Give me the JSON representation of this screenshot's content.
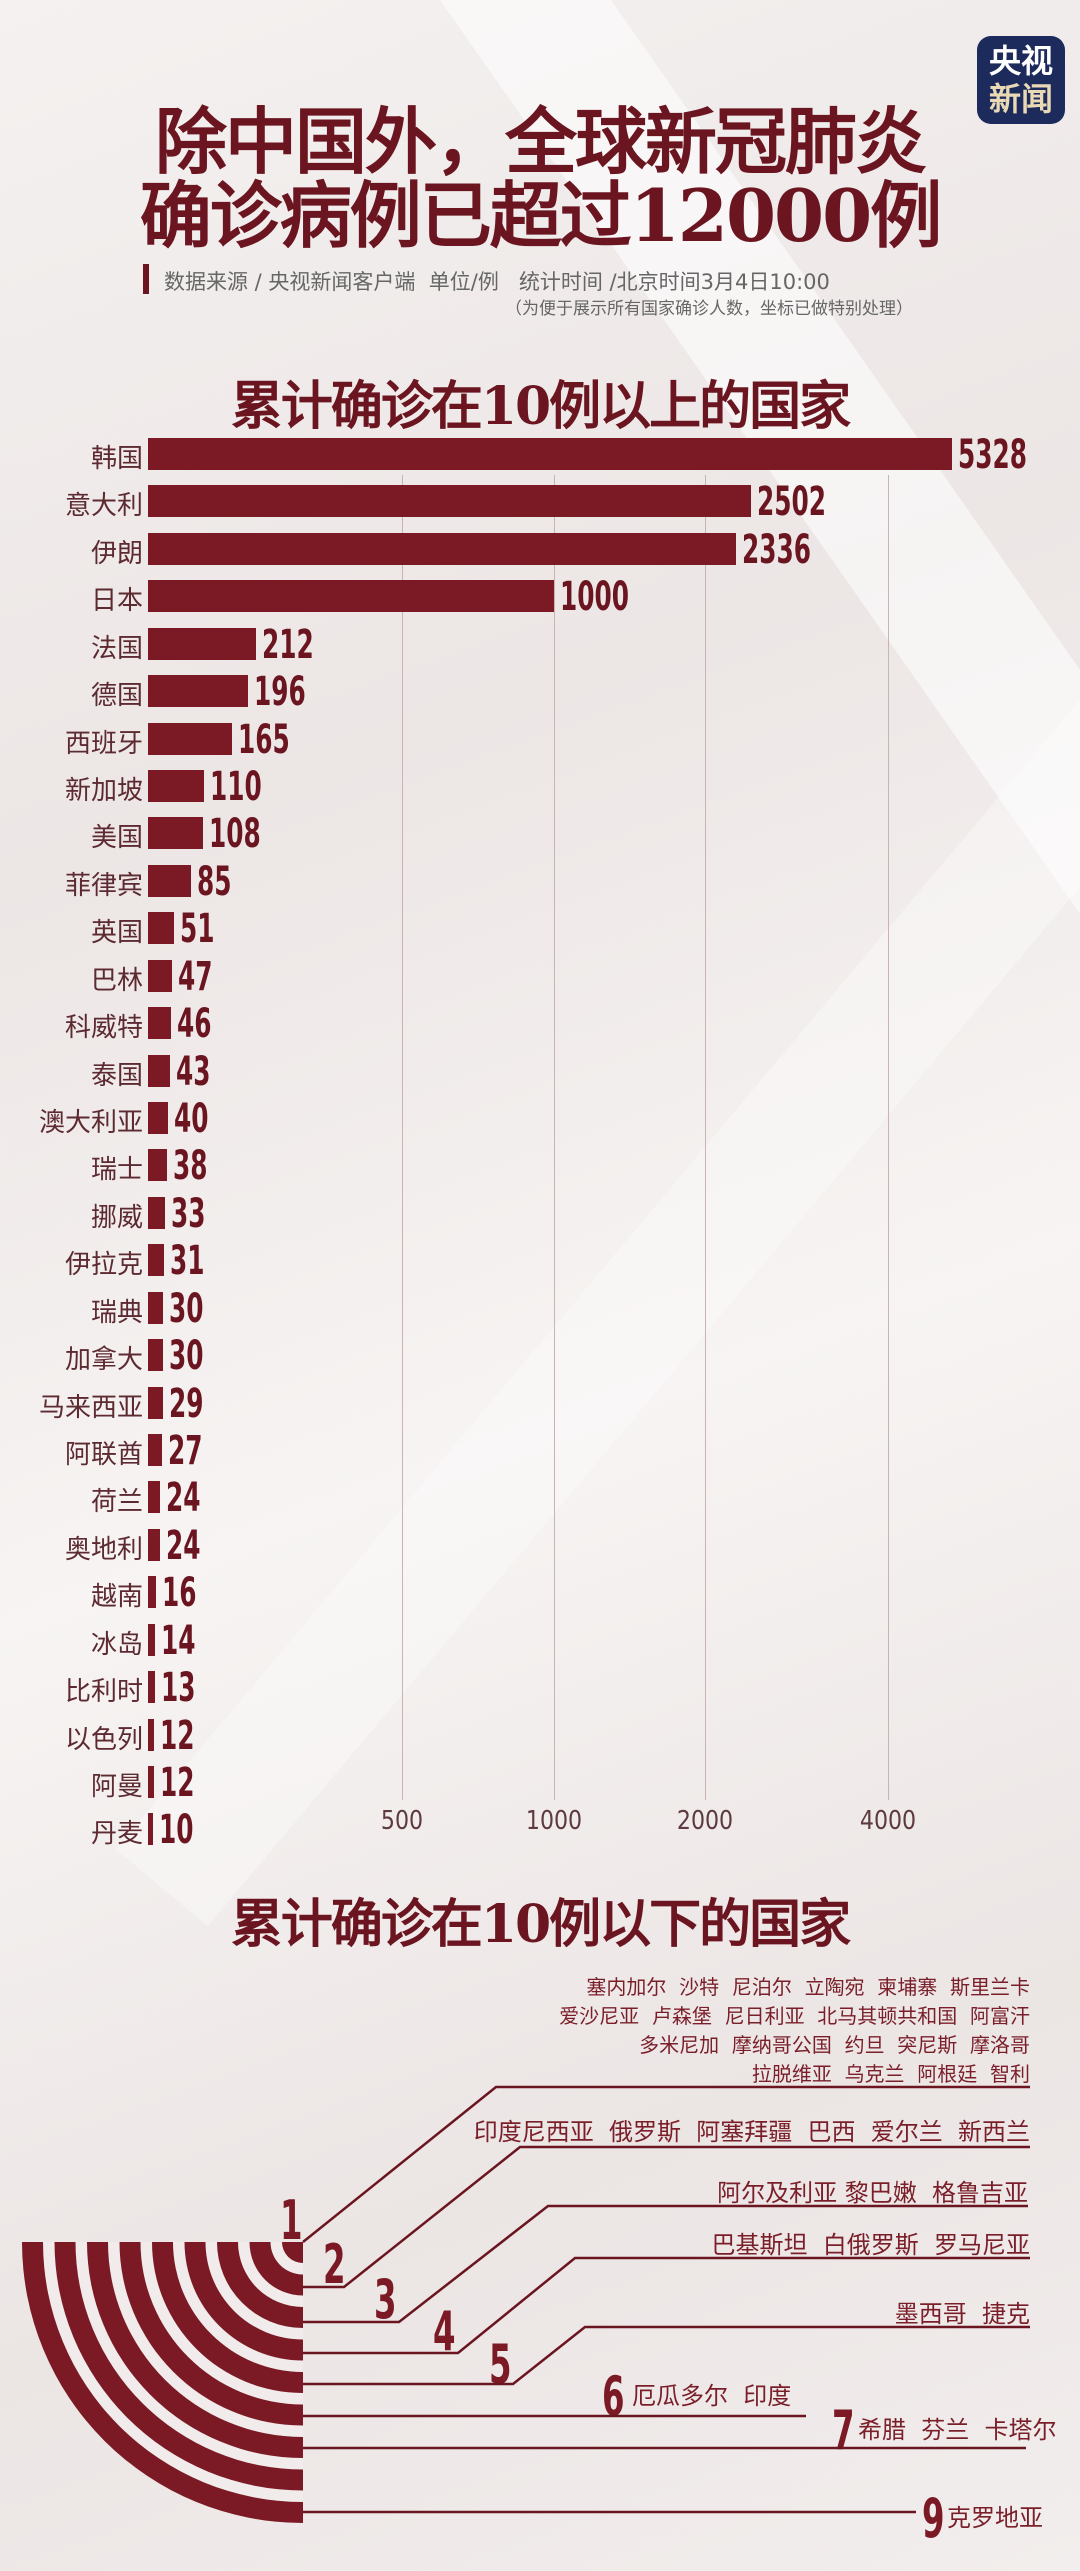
{
  "header": {
    "title_line1": "除中国外，全球新冠肺炎",
    "title_line2": "确诊病例已超过12000例",
    "logo_top": "央视",
    "logo_bottom": "新闻",
    "source": "数据来源 / 央视新闻客户端  单位/例   统计时间 /北京时间3月4日10:00",
    "note": "（为便于展示所有国家确诊人数，坐标已做特别处理）"
  },
  "colors": {
    "accent": "#7b1a25",
    "title": "#6b1520",
    "logo_bg": "#1c2a5c"
  },
  "chart_data": {
    "type": "bar",
    "orientation": "horizontal",
    "title": "累计确诊在10例以上的国家",
    "categories": [
      "韩国",
      "意大利",
      "伊朗",
      "日本",
      "法国",
      "德国",
      "西班牙",
      "新加坡",
      "美国",
      "菲律宾",
      "英国",
      "巴林",
      "科威特",
      "泰国",
      "澳大利亚",
      "瑞士",
      "挪威",
      "伊拉克",
      "瑞典",
      "加拿大",
      "马来西亚",
      "阿联酋",
      "荷兰",
      "奥地利",
      "越南",
      "冰岛",
      "比利时",
      "以色列",
      "阿曼",
      "丹麦"
    ],
    "values": [
      5328,
      2502,
      2336,
      1000,
      212,
      196,
      165,
      110,
      108,
      85,
      51,
      47,
      46,
      43,
      40,
      38,
      33,
      31,
      30,
      30,
      29,
      27,
      24,
      24,
      16,
      14,
      13,
      12,
      12,
      10
    ],
    "x_ticks": [
      "500",
      "1000",
      "2000",
      "4000"
    ],
    "x_scale": "non-linear (specially adjusted)",
    "grid": "vertical lines at ticks"
  },
  "below10": {
    "title": "累计确诊在10例以下的国家",
    "groups": [
      {
        "count": "1",
        "rows": [
          "塞内加尔  沙特  尼泊尔  立陶宛  柬埔寨  斯里兰卡",
          "爱沙尼亚  卢森堡  尼日利亚  北马其顿共和国  阿富汗",
          "多米尼加  摩纳哥公国  约旦  突尼斯  摩洛哥",
          "拉脱维亚  乌克兰  阿根廷  智利"
        ]
      },
      {
        "count": "2",
        "text": "印度尼西亚  俄罗斯  阿塞拜疆  巴西  爱尔兰  新西兰"
      },
      {
        "count": "3",
        "text": "阿尔及利亚 黎巴嫩  格鲁吉亚"
      },
      {
        "count": "4",
        "text": "巴基斯坦  白俄罗斯  罗马尼亚"
      },
      {
        "count": "5",
        "text": "墨西哥  捷克"
      },
      {
        "count": "6",
        "text": "厄瓜多尔  印度"
      },
      {
        "count": "7",
        "text": "希腊  芬兰  卡塔尔"
      },
      {
        "count": "9",
        "text": "克罗地亚"
      }
    ]
  }
}
